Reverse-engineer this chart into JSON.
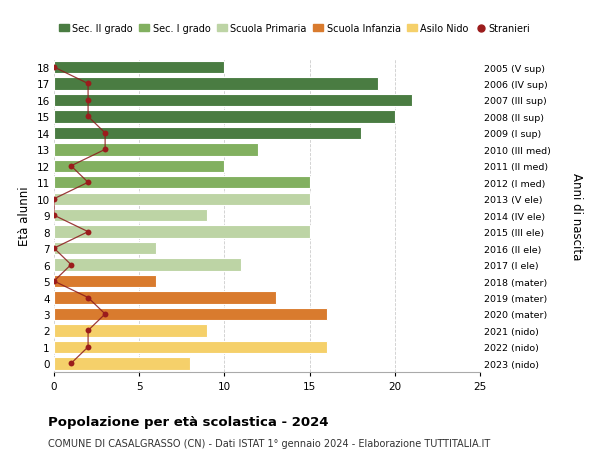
{
  "ages": [
    18,
    17,
    16,
    15,
    14,
    13,
    12,
    11,
    10,
    9,
    8,
    7,
    6,
    5,
    4,
    3,
    2,
    1,
    0
  ],
  "bar_values": [
    10,
    19,
    21,
    20,
    18,
    12,
    10,
    15,
    15,
    9,
    15,
    6,
    11,
    6,
    13,
    16,
    9,
    16,
    8
  ],
  "stranieri": [
    0,
    2,
    2,
    2,
    3,
    3,
    1,
    2,
    0,
    0,
    2,
    0,
    1,
    0,
    2,
    3,
    2,
    2,
    1
  ],
  "right_labels": [
    "2005 (V sup)",
    "2006 (IV sup)",
    "2007 (III sup)",
    "2008 (II sup)",
    "2009 (I sup)",
    "2010 (III med)",
    "2011 (II med)",
    "2012 (I med)",
    "2013 (V ele)",
    "2014 (IV ele)",
    "2015 (III ele)",
    "2016 (II ele)",
    "2017 (I ele)",
    "2018 (mater)",
    "2019 (mater)",
    "2020 (mater)",
    "2021 (nido)",
    "2022 (nido)",
    "2023 (nido)"
  ],
  "bar_colors": [
    "#4a7c42",
    "#4a7c42",
    "#4a7c42",
    "#4a7c42",
    "#4a7c42",
    "#82b060",
    "#82b060",
    "#82b060",
    "#bdd4a5",
    "#bdd4a5",
    "#bdd4a5",
    "#bdd4a5",
    "#bdd4a5",
    "#d97b2e",
    "#d97b2e",
    "#d97b2e",
    "#f5d06a",
    "#f5d06a",
    "#f5d06a"
  ],
  "legend_labels": [
    "Sec. II grado",
    "Sec. I grado",
    "Scuola Primaria",
    "Scuola Infanzia",
    "Asilo Nido",
    "Stranieri"
  ],
  "legend_colors": [
    "#4a7c42",
    "#82b060",
    "#bdd4a5",
    "#d97b2e",
    "#f5d06a",
    "#9b1c1c"
  ],
  "title": "Popolazione per età scolastica - 2024",
  "subtitle": "COMUNE DI CASALGRASSO (CN) - Dati ISTAT 1° gennaio 2024 - Elaborazione TUTTITALIA.IT",
  "ylabel": "Età alunni",
  "right_ylabel": "Anni di nascita",
  "xlim": [
    0,
    25
  ],
  "xticks": [
    0,
    5,
    10,
    15,
    20,
    25
  ],
  "background_color": "#ffffff",
  "grid_color": "#cccccc"
}
